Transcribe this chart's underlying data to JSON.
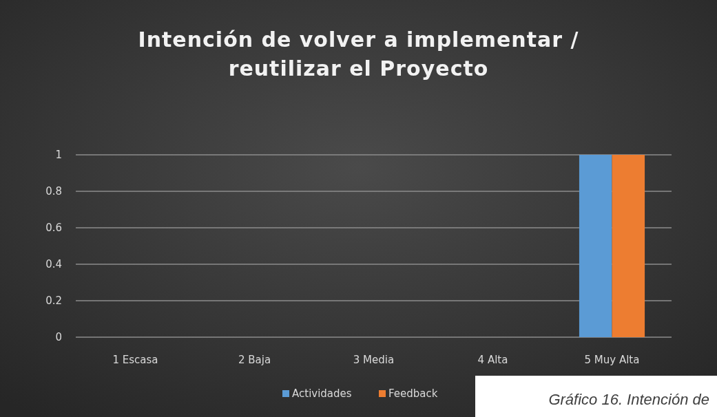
{
  "chart_data": {
    "type": "bar",
    "title": "Intención de volver a implementar / reutilizar el Proyecto",
    "categories": [
      "1 Escasa",
      "2 Baja",
      "3 Media",
      "4 Alta",
      "5 Muy Alta"
    ],
    "series": [
      {
        "name": "Actividades",
        "color": "#5b9bd5",
        "values": [
          0,
          0,
          0,
          0,
          1
        ]
      },
      {
        "name": "Feedback",
        "color": "#ed7d31",
        "values": [
          0,
          0,
          0,
          0,
          1
        ]
      }
    ],
    "ylim": [
      0,
      1
    ],
    "yticks": [
      0,
      0.2,
      0.4,
      0.6,
      0.8,
      1
    ],
    "grid": "y",
    "legend": "bottom",
    "annotations": [
      "Gráfico 16. Intención de"
    ]
  }
}
